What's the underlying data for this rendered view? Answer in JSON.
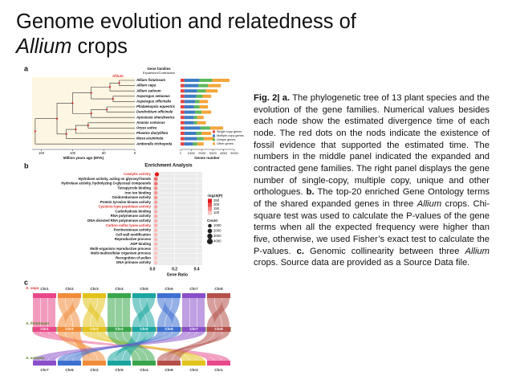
{
  "header": {
    "title_line1": "Genome evolution and relatedness of",
    "title_line2_italic": "Allium",
    "title_line2_rest": "crops"
  },
  "caption": [
    {
      "text": "Fig. 2| a.",
      "style": "bold"
    },
    {
      "text": " The phylogenetic tree of 13 plant species and the evolution of the gene families. Numerical values besides each node show the estimated divergence time of each node. The red dots on the nods indicate the existence of fossil evidence that supported the estimated time. The numbers in the middle panel indicated the expanded and contracted gene families. The right panel displays the gene number of single-copy, multiple copy, unique and other orthologues. "
    },
    {
      "text": "b.",
      "style": "bold"
    },
    {
      "text": " The top-20 enriched Gene Ontology terms of the shared expanded genes in three "
    },
    {
      "text": "Allium",
      "style": "italic"
    },
    {
      "text": " crops. Chi-square test was used to calculate the P-values of the gene terms when all the expected frequency were higher than five, otherwise, we used Fisher’s exact test to calculate the P-values. "
    },
    {
      "text": "c.",
      "style": "bold"
    },
    {
      "text": " Genomic collinearity between three "
    },
    {
      "text": "Allium",
      "style": "italic"
    },
    {
      "text": " crops. Source data are provided as a Source Data file."
    }
  ],
  "panel_a": {
    "label": "a",
    "legend_title": "Gene families",
    "legend_subtitle": "Expansion/Contraction",
    "clade": "Allium",
    "species": [
      "Allium fistulosum",
      "Allium cepa",
      "Allium sativum",
      "Asparagus setaceus",
      "Asparagus officinalis",
      "Phalaenopsis equestris",
      "Dendrobium officinale",
      "Apostasia shenzhenica",
      "Ananas comosus",
      "Oryza sativa",
      "Phoenix dactylifera",
      "Musa acuminata",
      "Amborella trichopoda"
    ],
    "time_axis": {
      "label": "Million years ago (MYA)",
      "xlim": [
        165,
        0
      ],
      "xticks": [
        150,
        100,
        50,
        0
      ]
    },
    "gene_chart": {
      "type": "bar",
      "xlabel": "Genes number",
      "xlim": [
        0,
        50000
      ],
      "xticks": [
        0,
        10000,
        20000,
        30000,
        40000,
        50000
      ],
      "series": [
        {
          "name": "Single-copy genes",
          "color": "#e8413c",
          "values": [
            3500,
            3500,
            3500,
            3500,
            3500,
            3500,
            3500,
            3500,
            3500,
            3500,
            3500,
            3500,
            3500
          ]
        },
        {
          "name": "Multiple-copy genes",
          "color": "#3e7cc4",
          "values": [
            14000,
            13000,
            12000,
            11000,
            10000,
            9000,
            10000,
            9000,
            9000,
            15000,
            11000,
            12000,
            8000
          ]
        },
        {
          "name": "Unique genes",
          "color": "#5cb85c",
          "values": [
            12000,
            9000,
            8000,
            6000,
            4000,
            5000,
            6000,
            3000,
            3000,
            9000,
            5000,
            6000,
            4000
          ]
        },
        {
          "name": "Other genes",
          "color": "#f5a53b",
          "values": [
            16000,
            12000,
            11000,
            8000,
            8000,
            8000,
            9000,
            6000,
            8000,
            12000,
            9000,
            10000,
            6000
          ]
        }
      ]
    }
  },
  "panel_b": {
    "label": "b",
    "chart_data": {
      "type": "scatter",
      "title": "Enrichment Analysis",
      "xlabel": "Gene Ratio",
      "categories": [
        "Catalytic activity",
        "Hydrolase activity, acting on glycosyl bonds",
        "Hydrolase activity, hydrolyzing O-glycosyl compounds",
        "Tetrapyrrole binding",
        "Iron ion binding",
        "Oxidoreductase activity",
        "Protein tyrosine kinase activity",
        "Cysteine-type peptidase activity",
        "Carbohydrate binding",
        "RNA polymerase activity",
        "DNA-directed RNA polymerase activity",
        "Carbon-sulfur lyase activity",
        "Pectinesterase activity",
        "Cell wall modification",
        "Reproductive process",
        "ADP binding",
        "Multi-organism reproductive process",
        "Multi-multicellular organism process",
        "Recognition of pollen",
        "DNA primase activity"
      ],
      "values": [
        0.04,
        0.03,
        0.03,
        0.03,
        0.03,
        0.03,
        0.03,
        0.03,
        0.03,
        0.03,
        0.03,
        0.03,
        0.03,
        0.03,
        0.03,
        0.03,
        0.03,
        0.03,
        0.03,
        0.03
      ],
      "counts": [
        1500,
        1200,
        1200,
        1100,
        1100,
        1100,
        1000,
        1000,
        1000,
        1000,
        1000,
        1000,
        1000,
        1000,
        1000,
        1000,
        1000,
        1000,
        1000,
        1000
      ],
      "neglog10p": [
        250,
        180,
        170,
        150,
        140,
        140,
        130,
        130,
        120,
        120,
        120,
        120,
        110,
        110,
        110,
        110,
        100,
        100,
        100,
        100
      ],
      "highlighted": [
        0,
        7,
        11
      ],
      "xlim": [
        0,
        0.45
      ],
      "xticks": [
        {
          "value": 0,
          "label": "0.0"
        },
        0.2,
        0.4
      ],
      "color_title": "-log10(P)",
      "color_ticks": [
        250,
        200,
        150,
        100
      ],
      "clim": [
        100,
        250
      ],
      "color_range": [
        "#fcc5c0",
        "#e31a1c"
      ],
      "size_title": "Count",
      "size_ticks": [
        1000,
        2000,
        3000,
        4000
      ]
    }
  },
  "panel_c": {
    "label": "c",
    "genomes": [
      {
        "name": "A. cepa",
        "chromosomes": [
          "Chr1",
          "Chr2",
          "Chr3",
          "Chr4",
          "Chr5",
          "Chr6",
          "Chr7",
          "Chr8"
        ]
      },
      {
        "name": "A. fistulosum",
        "chromosomes": [
          "Chr1",
          "Chr2",
          "Chr3",
          "Chr4",
          "Chr5",
          "Chr6",
          "Chr7",
          "Chr8"
        ]
      },
      {
        "name": "A. sativum",
        "chromosomes": [
          "Chr7",
          "Chr6",
          "Chr2",
          "Chr5",
          "Chr4",
          "Chr8",
          "Chr3",
          "Chr1"
        ]
      }
    ]
  }
}
